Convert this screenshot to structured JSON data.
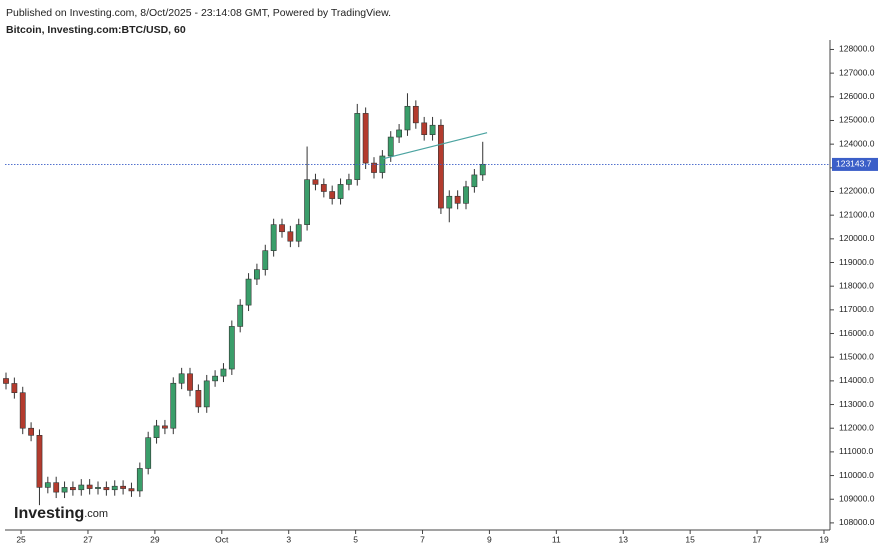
{
  "chart_data": {
    "type": "candlestick",
    "source_note": "Published on Investing.com, 8/Oct/2025 - 23:14:08 GMT, Powered by TradingView.",
    "title": "Bitcoin, Investing.com:BTC/USD, 60",
    "logo": {
      "name": "Investing",
      "suffix": ".com"
    },
    "xlim": [
      -0.48,
      24.18
    ],
    "xticks": [
      {
        "value": 0,
        "label": "25"
      },
      {
        "value": 2,
        "label": "27"
      },
      {
        "value": 4,
        "label": "29"
      },
      {
        "value": 6,
        "label": "Oct"
      },
      {
        "value": 8,
        "label": "3"
      },
      {
        "value": 10,
        "label": "5"
      },
      {
        "value": 12,
        "label": "7"
      },
      {
        "value": 14,
        "label": "9"
      },
      {
        "value": 16,
        "label": "11"
      },
      {
        "value": 18,
        "label": "13"
      },
      {
        "value": 20,
        "label": "15"
      },
      {
        "value": 22,
        "label": "17"
      },
      {
        "value": 24,
        "label": "19"
      }
    ],
    "ylim": [
      107700,
      128400
    ],
    "yticks": [
      {
        "value": 108000,
        "label": "108000.0"
      },
      {
        "value": 109000,
        "label": "109000.0"
      },
      {
        "value": 110000,
        "label": "110000.0"
      },
      {
        "value": 111000,
        "label": "111000.0"
      },
      {
        "value": 112000,
        "label": "112000.0"
      },
      {
        "value": 113000,
        "label": "113000.0"
      },
      {
        "value": 114000,
        "label": "114000.0"
      },
      {
        "value": 115000,
        "label": "115000.0"
      },
      {
        "value": 116000,
        "label": "116000.0"
      },
      {
        "value": 117000,
        "label": "117000.0"
      },
      {
        "value": 118000,
        "label": "118000.0"
      },
      {
        "value": 119000,
        "label": "119000.0"
      },
      {
        "value": 120000,
        "label": "120000.0"
      },
      {
        "value": 121000,
        "label": "121000.0"
      },
      {
        "value": 122000,
        "label": "122000.0"
      },
      {
        "value": 123000,
        "label": "123000.0"
      },
      {
        "value": 124000,
        "label": "124000.0"
      },
      {
        "value": 125000,
        "label": "125000.0"
      },
      {
        "value": 126000,
        "label": "126000.0"
      },
      {
        "value": 127000,
        "label": "127000.0"
      },
      {
        "value": 128000,
        "label": "128000.0"
      }
    ],
    "last_price": 123143.7,
    "last_price_color": "#3b5fc8",
    "up_color": "#3a9e6a",
    "down_color": "#b33b2e",
    "trendline": {
      "x": [
        10.82,
        13.93
      ],
      "y": [
        123381,
        124483
      ],
      "color": "#4aa3a0"
    },
    "series": [
      {
        "x": [
          -0.45,
          -0.2,
          0.05,
          0.3,
          0.55,
          0.8,
          1.05,
          1.3,
          1.55,
          1.8,
          2.05,
          2.3,
          2.55,
          2.8,
          3.05,
          3.3,
          3.55,
          3.8,
          4.05,
          4.3,
          4.55,
          4.8,
          5.05,
          5.3,
          5.55,
          5.8,
          6.05,
          6.3,
          6.55,
          6.8,
          7.05,
          7.3,
          7.55,
          7.8,
          8.05,
          8.3,
          8.55,
          8.8,
          9.05,
          9.3,
          9.55,
          9.8,
          10.05,
          10.3,
          10.55,
          10.8,
          11.05,
          11.3,
          11.55,
          11.8,
          12.05,
          12.3,
          12.55,
          12.8,
          13.05,
          13.3,
          13.55,
          13.8
        ],
        "open": [
          114100,
          113890,
          113500,
          112000,
          111700,
          109500,
          109700,
          109300,
          109500,
          109400,
          109600,
          109450,
          109500,
          109400,
          109550,
          109450,
          109350,
          110300,
          111600,
          112100,
          112000,
          113900,
          114300,
          113600,
          112900,
          114000,
          114200,
          114500,
          116300,
          117200,
          118300,
          118700,
          119500,
          120600,
          120300,
          119900,
          120600,
          122500,
          122300,
          122000,
          121700,
          122300,
          122500,
          125300,
          123200,
          122800,
          123500,
          124300,
          124600,
          125600,
          124900,
          124400,
          124800,
          121300,
          121800,
          121500,
          122200,
          122700
        ],
        "high": [
          114350,
          114140,
          113750,
          112250,
          111950,
          109950,
          109950,
          109750,
          109750,
          109850,
          109850,
          109750,
          109750,
          109800,
          109800,
          109700,
          110550,
          111850,
          112350,
          112350,
          114150,
          114550,
          114550,
          113850,
          114250,
          114450,
          114750,
          116550,
          117450,
          118550,
          118950,
          119750,
          120850,
          120850,
          120550,
          120850,
          123900,
          122750,
          122550,
          122250,
          122550,
          122750,
          125700,
          125550,
          123450,
          123750,
          124550,
          124850,
          126150,
          125850,
          125150,
          125150,
          125050,
          122050,
          122050,
          122450,
          122950,
          124100
        ],
        "low": [
          113640,
          113250,
          111750,
          111450,
          108750,
          109250,
          109050,
          109050,
          109150,
          109150,
          109200,
          109200,
          109150,
          109150,
          109200,
          109100,
          109100,
          110050,
          111350,
          111750,
          111750,
          113650,
          113350,
          112650,
          112650,
          113750,
          113950,
          114250,
          116050,
          116950,
          118050,
          118450,
          119250,
          120050,
          119650,
          119650,
          120350,
          122050,
          121750,
          121450,
          121450,
          122050,
          122250,
          122950,
          122550,
          122550,
          123250,
          124050,
          124350,
          124650,
          124150,
          124150,
          121050,
          120700,
          121250,
          121250,
          121950,
          122450
        ],
        "close": [
          113890,
          113500,
          112000,
          111700,
          109500,
          109700,
          109300,
          109500,
          109400,
          109600,
          109450,
          109500,
          109400,
          109550,
          109450,
          109350,
          110300,
          111600,
          112100,
          112000,
          113900,
          114300,
          113600,
          112900,
          114000,
          114200,
          114500,
          116300,
          117200,
          118300,
          118700,
          119500,
          120600,
          120300,
          119900,
          120600,
          122500,
          122300,
          122000,
          121700,
          122300,
          122500,
          125300,
          123200,
          122800,
          123500,
          124300,
          124600,
          125600,
          124900,
          124400,
          124800,
          121300,
          121800,
          121500,
          122200,
          122700,
          123150
        ]
      }
    ]
  }
}
